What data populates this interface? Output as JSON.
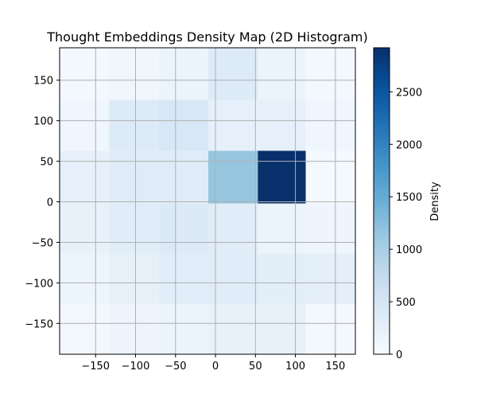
{
  "chart_data": {
    "type": "heatmap",
    "title": "Thought Embeddings Density Map (2D Histogram)",
    "xlabel": "",
    "ylabel": "",
    "xlim": [
      -195,
      175
    ],
    "ylim": [
      -188,
      190
    ],
    "x_edges": [
      -195,
      -133,
      -71,
      -9,
      53,
      113,
      175
    ],
    "y_edges": [
      -188,
      -126,
      -64,
      -2,
      63,
      126,
      190
    ],
    "x_ticks": [
      -150,
      -100,
      -50,
      0,
      50,
      100,
      150
    ],
    "x_tick_labels": [
      "−150",
      "−100",
      "−50",
      "0",
      "50",
      "100",
      "150"
    ],
    "y_ticks": [
      -150,
      -100,
      -50,
      0,
      50,
      100,
      150
    ],
    "y_tick_labels": [
      "−150",
      "−100",
      "−50",
      "0",
      "50",
      "100",
      "150"
    ],
    "density_rows_bottom_to_top": [
      [
        80,
        150,
        170,
        220,
        220,
        60
      ],
      [
        140,
        260,
        320,
        340,
        300,
        280
      ],
      [
        220,
        330,
        400,
        340,
        170,
        130
      ],
      [
        250,
        350,
        350,
        1150,
        2920,
        50
      ],
      [
        110,
        380,
        450,
        250,
        250,
        110
      ],
      [
        60,
        120,
        160,
        380,
        180,
        60
      ]
    ],
    "colorbar": {
      "label": "Density",
      "min": 0,
      "max": 2920,
      "ticks": [
        0,
        500,
        1000,
        1500,
        2000,
        2500
      ],
      "tick_labels": [
        "0",
        "500",
        "1000",
        "1500",
        "2000",
        "2500"
      ]
    },
    "colormap": "Blues",
    "grid": true
  }
}
